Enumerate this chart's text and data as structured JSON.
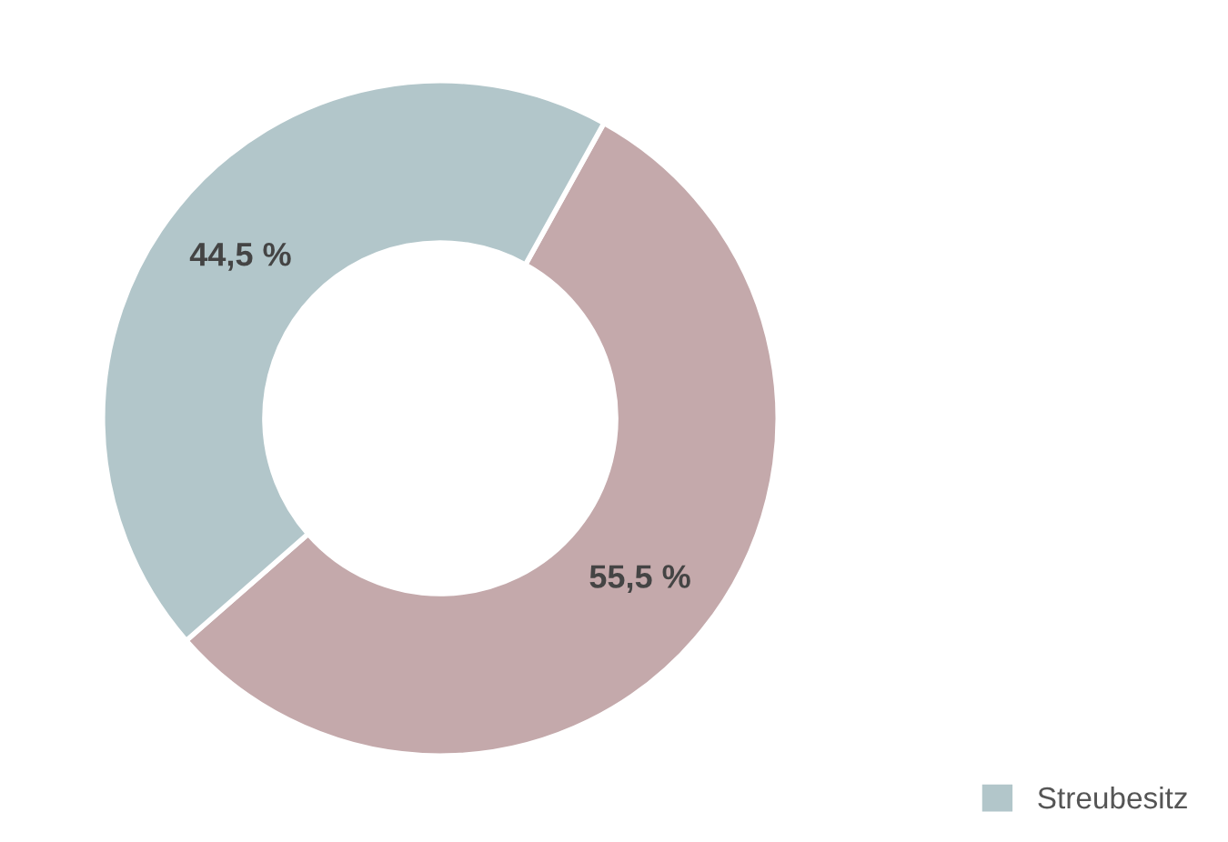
{
  "chart_data": {
    "type": "donut",
    "categories": [
      null,
      "Streubesitz"
    ],
    "values": [
      55.5,
      44.5
    ],
    "colors": [
      "#c4a9ab",
      "#b2c6ca"
    ],
    "value_labels": [
      "55,5 %",
      "44,5 %"
    ],
    "legend": "bottom right"
  }
}
